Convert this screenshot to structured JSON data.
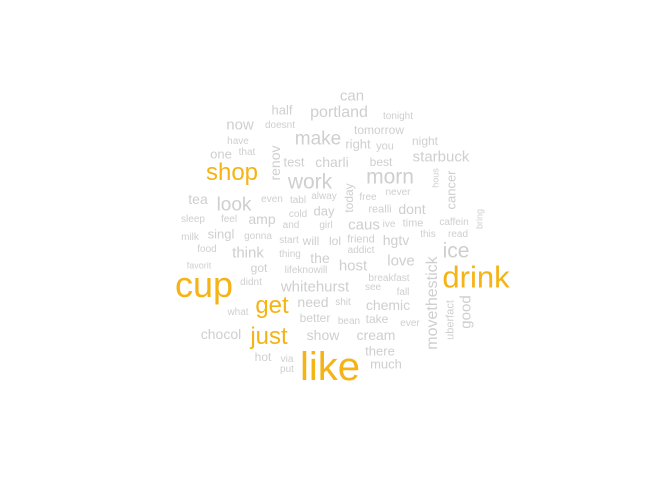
{
  "word_cloud": {
    "colors": {
      "highlight": "#f5b315",
      "normal": "#cfcfcf"
    },
    "words": [
      {
        "text": "like",
        "freq": 100,
        "highlight": true
      },
      {
        "text": "cup",
        "freq": 90,
        "highlight": true
      },
      {
        "text": "drink",
        "freq": 88,
        "highlight": true
      },
      {
        "text": "shop",
        "freq": 65,
        "highlight": true
      },
      {
        "text": "just",
        "freq": 64,
        "highlight": true
      },
      {
        "text": "get",
        "freq": 62,
        "highlight": true
      },
      {
        "text": "work",
        "freq": 50
      },
      {
        "text": "morn",
        "freq": 50
      },
      {
        "text": "ice",
        "freq": 50
      },
      {
        "text": "make",
        "freq": 45
      },
      {
        "text": "look",
        "freq": 44
      },
      {
        "text": "movethestick",
        "freq": 42
      },
      {
        "text": "portland",
        "freq": 38
      },
      {
        "text": "can",
        "freq": 36
      },
      {
        "text": "good",
        "freq": 36
      },
      {
        "text": "starbuck",
        "freq": 35
      },
      {
        "text": "caus",
        "freq": 35
      },
      {
        "text": "host",
        "freq": 35
      },
      {
        "text": "love",
        "freq": 35
      },
      {
        "text": "whitehurst",
        "freq": 35
      },
      {
        "text": "think",
        "freq": 35
      },
      {
        "text": "charli",
        "freq": 33
      },
      {
        "text": "now",
        "freq": 33
      },
      {
        "text": "renov",
        "freq": 33
      },
      {
        "text": "the",
        "freq": 32
      },
      {
        "text": "show",
        "freq": 32
      },
      {
        "text": "amp",
        "freq": 32
      },
      {
        "text": "tea",
        "freq": 32
      },
      {
        "text": "dont",
        "freq": 30
      },
      {
        "text": "hgtv",
        "freq": 30
      },
      {
        "text": "need",
        "freq": 30
      },
      {
        "text": "chemic",
        "freq": 30
      },
      {
        "text": "cream",
        "freq": 30
      },
      {
        "text": "chocol",
        "freq": 30
      },
      {
        "text": "singl",
        "freq": 29
      },
      {
        "text": "right",
        "freq": 28
      },
      {
        "text": "half",
        "freq": 27
      },
      {
        "text": "test",
        "freq": 27
      },
      {
        "text": "one",
        "freq": 27
      },
      {
        "text": "day",
        "freq": 27
      },
      {
        "text": "cancer",
        "freq": 26
      },
      {
        "text": "there",
        "freq": 26
      },
      {
        "text": "much",
        "freq": 26
      },
      {
        "text": "better",
        "freq": 25
      },
      {
        "text": "take",
        "freq": 25
      },
      {
        "text": "lol",
        "freq": 25
      },
      {
        "text": "will",
        "freq": 25
      },
      {
        "text": "best",
        "freq": 25
      },
      {
        "text": "tomorrow",
        "freq": 25
      },
      {
        "text": "night",
        "freq": 25
      },
      {
        "text": "today",
        "freq": 25
      },
      {
        "text": "got",
        "freq": 24
      },
      {
        "text": "hot",
        "freq": 24
      },
      {
        "text": "time",
        "freq": 24
      },
      {
        "text": "realli",
        "freq": 24
      },
      {
        "text": "friend",
        "freq": 24
      },
      {
        "text": "uberfact",
        "freq": 23
      },
      {
        "text": "tonight",
        "freq": 22
      },
      {
        "text": "you",
        "freq": 22
      },
      {
        "text": "doesnt",
        "freq": 22
      },
      {
        "text": "have",
        "freq": 22
      },
      {
        "text": "that",
        "freq": 22
      },
      {
        "text": "even",
        "freq": 21
      },
      {
        "text": "tabl",
        "freq": 21
      },
      {
        "text": "alway",
        "freq": 21
      },
      {
        "text": "free",
        "freq": 21
      },
      {
        "text": "never",
        "freq": 21
      },
      {
        "text": "cold",
        "freq": 21
      },
      {
        "text": "and",
        "freq": 21
      },
      {
        "text": "girl",
        "freq": 21
      },
      {
        "text": "ive",
        "freq": 21
      },
      {
        "text": "this",
        "freq": 21
      },
      {
        "text": "read",
        "freq": 21
      },
      {
        "text": "caffein",
        "freq": 21
      },
      {
        "text": "hous",
        "freq": 20
      },
      {
        "text": "bring",
        "freq": 20
      },
      {
        "text": "sleep",
        "freq": 21
      },
      {
        "text": "feel",
        "freq": 21
      },
      {
        "text": "milk",
        "freq": 21
      },
      {
        "text": "gonna",
        "freq": 21
      },
      {
        "text": "start",
        "freq": 21
      },
      {
        "text": "food",
        "freq": 20
      },
      {
        "text": "thing",
        "freq": 21
      },
      {
        "text": "addict",
        "freq": 21
      },
      {
        "text": "favorit",
        "freq": 20
      },
      {
        "text": "lifeknowill",
        "freq": 20
      },
      {
        "text": "didnt",
        "freq": 20
      },
      {
        "text": "breakfast",
        "freq": 20
      },
      {
        "text": "see",
        "freq": 20
      },
      {
        "text": "shit",
        "freq": 20
      },
      {
        "text": "fall",
        "freq": 20
      },
      {
        "text": "what",
        "freq": 20
      },
      {
        "text": "bean",
        "freq": 20
      },
      {
        "text": "ever",
        "freq": 20
      },
      {
        "text": "via",
        "freq": 20
      },
      {
        "text": "put",
        "freq": 20
      }
    ]
  }
}
